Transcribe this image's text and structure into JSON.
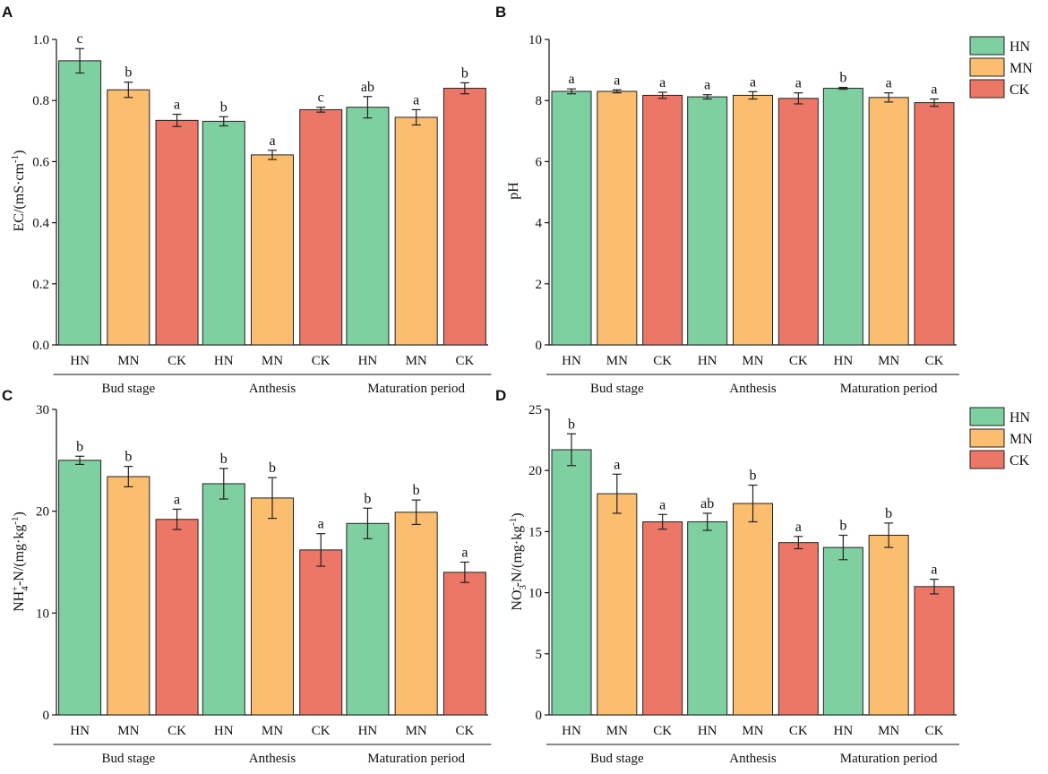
{
  "colors": {
    "HN": "#7fd0a0",
    "MN": "#fbbd6e",
    "CK": "#ec7766"
  },
  "legend": [
    "HN",
    "MN",
    "CK"
  ],
  "chart_data": [
    {
      "id": "A",
      "type": "bar",
      "panel_label": "A",
      "ylabel_main": "EC/(mS·cm",
      "ylabel_sup": "-1",
      "ylabel_tail": ")",
      "ylim": [
        0,
        1.0
      ],
      "yticks": [
        0.0,
        0.2,
        0.4,
        0.6,
        0.8,
        1.0
      ],
      "ytick_labels": [
        "0.0",
        "0.2",
        "0.4",
        "0.6",
        "0.8",
        "1.0"
      ],
      "groups": [
        "Bud stage",
        "Anthesis",
        "Maturation period"
      ],
      "series_names": [
        "HN",
        "MN",
        "CK"
      ],
      "show_legend": false,
      "values": [
        [
          0.93,
          0.835,
          0.735
        ],
        [
          0.732,
          0.622,
          0.77
        ],
        [
          0.778,
          0.745,
          0.84
        ]
      ],
      "errors": [
        [
          0.04,
          0.025,
          0.02
        ],
        [
          0.015,
          0.015,
          0.008
        ],
        [
          0.035,
          0.025,
          0.018
        ]
      ],
      "letters": [
        [
          "c",
          "b",
          "a"
        ],
        [
          "b",
          "a",
          "c"
        ],
        [
          "ab",
          "a",
          "b"
        ]
      ]
    },
    {
      "id": "B",
      "type": "bar",
      "panel_label": "B",
      "ylabel_main": "pH",
      "ylabel_sup": "",
      "ylabel_tail": "",
      "ylim": [
        0,
        10
      ],
      "yticks": [
        0,
        2,
        4,
        6,
        8,
        10
      ],
      "ytick_labels": [
        "0",
        "2",
        "4",
        "6",
        "8",
        "10"
      ],
      "groups": [
        "Bud stage",
        "Anthesis",
        "Maturation period"
      ],
      "series_names": [
        "HN",
        "MN",
        "CK"
      ],
      "show_legend": true,
      "values": [
        [
          8.3,
          8.3,
          8.17
        ],
        [
          8.12,
          8.17,
          8.07
        ],
        [
          8.4,
          8.1,
          7.93
        ]
      ],
      "errors": [
        [
          0.08,
          0.05,
          0.1
        ],
        [
          0.07,
          0.12,
          0.18
        ],
        [
          0.03,
          0.15,
          0.12
        ]
      ],
      "letters": [
        [
          "a",
          "a",
          "a"
        ],
        [
          "a",
          "a",
          "a"
        ],
        [
          "b",
          "a",
          "a"
        ]
      ]
    },
    {
      "id": "C",
      "type": "bar",
      "panel_label": "C",
      "ylabel_main": "NH",
      "ylabel_sub": "4",
      "ylabel_supsym": "+",
      "ylabel_rest": "-N/(mg·kg",
      "ylabel_sup": "-1",
      "ylabel_tail": ")",
      "ylim": [
        0,
        30
      ],
      "yticks": [
        0,
        10,
        20,
        30
      ],
      "ytick_labels": [
        "0",
        "10",
        "20",
        "30"
      ],
      "groups": [
        "Bud stage",
        "Anthesis",
        "Maturation period"
      ],
      "series_names": [
        "HN",
        "MN",
        "CK"
      ],
      "show_legend": false,
      "values": [
        [
          25.0,
          23.4,
          19.2
        ],
        [
          22.7,
          21.3,
          16.2
        ],
        [
          18.8,
          19.9,
          14.0
        ]
      ],
      "errors": [
        [
          0.4,
          1.0,
          1.0
        ],
        [
          1.5,
          2.0,
          1.6
        ],
        [
          1.5,
          1.2,
          1.0
        ]
      ],
      "letters": [
        [
          "b",
          "b",
          "a"
        ],
        [
          "b",
          "b",
          "a"
        ],
        [
          "b",
          "b",
          "a"
        ]
      ]
    },
    {
      "id": "D",
      "type": "bar",
      "panel_label": "D",
      "ylabel_main": "NO",
      "ylabel_sub": "3",
      "ylabel_supsym": "-",
      "ylabel_rest": "-N/(mg·kg",
      "ylabel_sup": "-1",
      "ylabel_tail": ")",
      "ylim": [
        0,
        25
      ],
      "yticks": [
        0,
        5,
        10,
        15,
        20,
        25
      ],
      "ytick_labels": [
        "0",
        "5",
        "10",
        "15",
        "20",
        "25"
      ],
      "groups": [
        "Bud stage",
        "Anthesis",
        "Maturation period"
      ],
      "series_names": [
        "HN",
        "MN",
        "CK"
      ],
      "show_legend": true,
      "values": [
        [
          21.7,
          18.1,
          15.8
        ],
        [
          15.8,
          17.3,
          14.1
        ],
        [
          13.7,
          14.7,
          10.5
        ]
      ],
      "errors": [
        [
          1.3,
          1.6,
          0.6
        ],
        [
          0.7,
          1.5,
          0.5
        ],
        [
          1.0,
          1.0,
          0.6
        ]
      ],
      "letters": [
        [
          "b",
          "a",
          "a"
        ],
        [
          "ab",
          "b",
          "a"
        ],
        [
          "b",
          "b",
          "a"
        ]
      ]
    }
  ]
}
